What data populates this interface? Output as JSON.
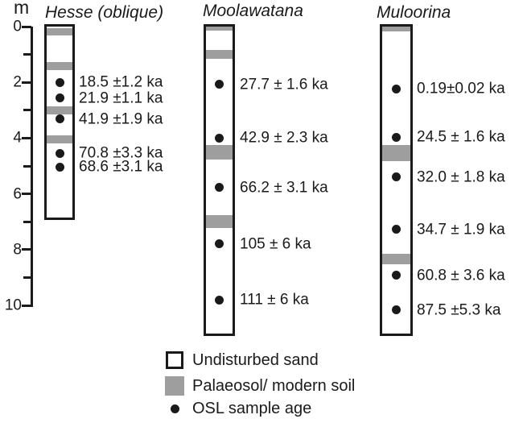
{
  "figure": {
    "background": "#ffffff",
    "ink_color": "#1a1a1a",
    "soil_color": "#9e9e9e",
    "sand_color": "#ffffff"
  },
  "chart_data": {
    "type": "stratigraphic-columns",
    "depth_axis": {
      "label": "m",
      "min": 0,
      "max": 10,
      "major_ticks": [
        0,
        2,
        4,
        6,
        8,
        10
      ],
      "major_tick_labels": [
        "0",
        "2",
        "4",
        "6",
        "8",
        "10"
      ],
      "minor_ticks": [
        1,
        3,
        5,
        7,
        9
      ]
    },
    "columns": [
      {
        "name": "Hesse (oblique)",
        "depth_range_m": [
          0,
          6.85
        ],
        "palaeosol_bands_m": [
          [
            0.06,
            0.32
          ],
          [
            1.27,
            1.56
          ],
          [
            2.86,
            3.15
          ],
          [
            3.9,
            4.19
          ]
        ],
        "samples": [
          {
            "depth_m": 2.0,
            "age_label": "18.5 ±1.2 ka"
          },
          {
            "depth_m": 2.57,
            "age_label": "21.9 ±1.1 ka"
          },
          {
            "depth_m": 3.32,
            "age_label": "41.9 ±1.9 ka"
          },
          {
            "depth_m": 4.54,
            "age_label": "70.8 ±3.3 ka"
          },
          {
            "depth_m": 5.03,
            "age_label": "68.6 ±3.1 ka"
          }
        ]
      },
      {
        "name": "Moolawatana",
        "depth_range_m": [
          0,
          11.0
        ],
        "palaeosol_bands_m": [
          [
            0,
            0.14
          ],
          [
            0.84,
            1.16
          ],
          [
            4.25,
            4.77
          ],
          [
            6.76,
            7.23
          ]
        ],
        "samples": [
          {
            "depth_m": 2.08,
            "age_label": "27.7 ± 1.6 ka"
          },
          {
            "depth_m": 3.99,
            "age_label": "42.9 ± 2.3 ka"
          },
          {
            "depth_m": 5.78,
            "age_label": "66.2 ± 3.1 ka"
          },
          {
            "depth_m": 7.8,
            "age_label": "105 ± 6 ka"
          },
          {
            "depth_m": 9.8,
            "age_label": "111 ± 6 ka"
          }
        ]
      },
      {
        "name": "Muloorina",
        "depth_range_m": [
          0,
          11.0
        ],
        "palaeosol_bands_m": [
          [
            0,
            0.17
          ],
          [
            4.25,
            4.83
          ],
          [
            8.15,
            8.53
          ]
        ],
        "samples": [
          {
            "depth_m": 2.23,
            "age_label": "0.19±0.02 ka"
          },
          {
            "depth_m": 3.96,
            "age_label": "24.5 ± 1.6 ka"
          },
          {
            "depth_m": 5.4,
            "age_label": "32.0 ± 1.8 ka"
          },
          {
            "depth_m": 7.28,
            "age_label": "34.7 ± 1.9 ka"
          },
          {
            "depth_m": 8.93,
            "age_label": "60.8 ± 3.6 ka"
          },
          {
            "depth_m": 10.17,
            "age_label": "87.5 ±5.3 ka"
          }
        ]
      }
    ],
    "legend": [
      {
        "swatch": "undisturbed-sand",
        "label": "Undisturbed sand"
      },
      {
        "swatch": "palaeosol-modern-soil",
        "label": "Palaeosol/ modern soil"
      },
      {
        "swatch": "osl-sample-dot",
        "label": "OSL sample age"
      }
    ]
  }
}
